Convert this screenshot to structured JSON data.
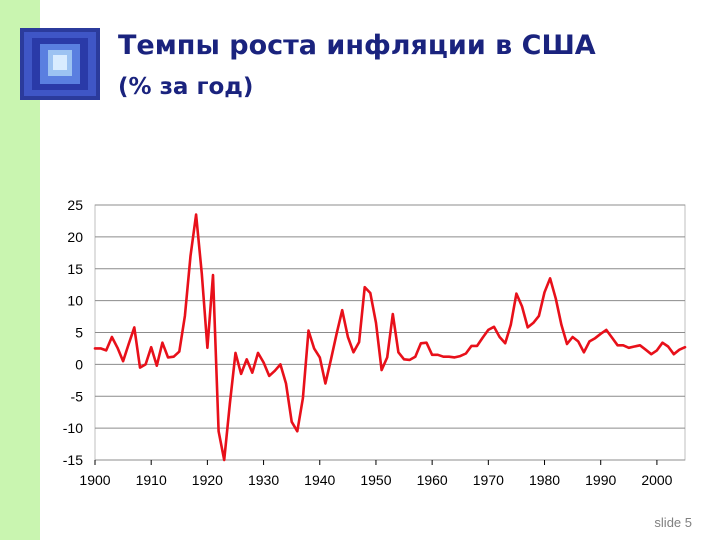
{
  "slide": {
    "title": "Темпы роста инфляции в США",
    "subtitle": "(% за год)",
    "footer": "slide 5",
    "accent_color": "#1a237e",
    "sidebar_color": "#c9f5b0",
    "logo_icon": "blue-window-icon"
  },
  "chart_data": {
    "type": "line",
    "title": "",
    "xlabel": "",
    "ylabel": "",
    "xlim": [
      1900,
      2005
    ],
    "ylim": [
      -15,
      25
    ],
    "yticks": [
      25,
      20,
      15,
      10,
      5,
      0,
      -5,
      -10,
      -15
    ],
    "xticks": [
      1900,
      1910,
      1920,
      1930,
      1940,
      1950,
      1960,
      1970,
      1980,
      1990,
      2000
    ],
    "grid": "horizontal",
    "line_color": "#e8101a",
    "series": [
      {
        "x": [
          1900,
          1901,
          1902,
          1903,
          1904,
          1905,
          1906,
          1907,
          1908,
          1909,
          1910,
          1911,
          1912,
          1913,
          1914,
          1915,
          1916,
          1917,
          1918,
          1919,
          1920,
          1921,
          1922,
          1923,
          1924,
          1925,
          1926,
          1927,
          1928,
          1929,
          1930,
          1931,
          1932,
          1933,
          1934,
          1935,
          1936,
          1937,
          1938,
          1939,
          1940,
          1941,
          1942,
          1943,
          1944,
          1945,
          1946,
          1947,
          1948,
          1949,
          1950,
          1951,
          1952,
          1953,
          1954,
          1955,
          1956,
          1957,
          1958,
          1959,
          1960,
          1961,
          1962,
          1963,
          1964,
          1965,
          1966,
          1967,
          1968,
          1969,
          1970,
          1971,
          1972,
          1973,
          1974,
          1975,
          1976,
          1977,
          1978,
          1979,
          1980,
          1981,
          1982,
          1983,
          1984,
          1985,
          1986,
          1987,
          1988,
          1989,
          1990,
          1991,
          1992,
          1993,
          1994,
          1995,
          1996,
          1997,
          1998,
          1999,
          2000,
          2001,
          2002,
          2003,
          2004,
          2005
        ],
        "values": [
          2.5,
          2.5,
          2.2,
          4.3,
          2.6,
          0.5,
          3.2,
          5.8,
          -0.5,
          0.0,
          2.7,
          -0.2,
          3.4,
          1.1,
          1.2,
          2.0,
          7.6,
          17.0,
          23.5,
          14.2,
          2.6,
          14.0,
          -10.5,
          -15.0,
          -6.1,
          1.8,
          -1.5,
          0.8,
          -1.3,
          1.8,
          0.3,
          -1.8,
          -1.0,
          0.0,
          -3.0,
          -9.0,
          -10.5,
          -5.3,
          5.3,
          2.5,
          1.1,
          -3.0,
          0.8,
          4.8,
          8.5,
          4.3,
          1.9,
          3.5,
          12.1,
          11.2,
          6.5,
          -0.9,
          1.1,
          7.9,
          1.9,
          0.8,
          0.7,
          1.2,
          3.3,
          3.4,
          1.5,
          1.5,
          1.2,
          1.2,
          1.1,
          1.3,
          1.7,
          2.9,
          2.9,
          4.2,
          5.4,
          5.9,
          4.3,
          3.3,
          6.2,
          11.1,
          9.1,
          5.8,
          6.5,
          7.6,
          11.3,
          13.5,
          10.3,
          6.2,
          3.2,
          4.3,
          3.6,
          1.9,
          3.6,
          4.1,
          4.8,
          5.4,
          4.2,
          3.0,
          3.0,
          2.6,
          2.8,
          3.0,
          2.3,
          1.6,
          2.2,
          3.4,
          2.8,
          1.6,
          2.3,
          2.7
        ]
      }
    ]
  }
}
